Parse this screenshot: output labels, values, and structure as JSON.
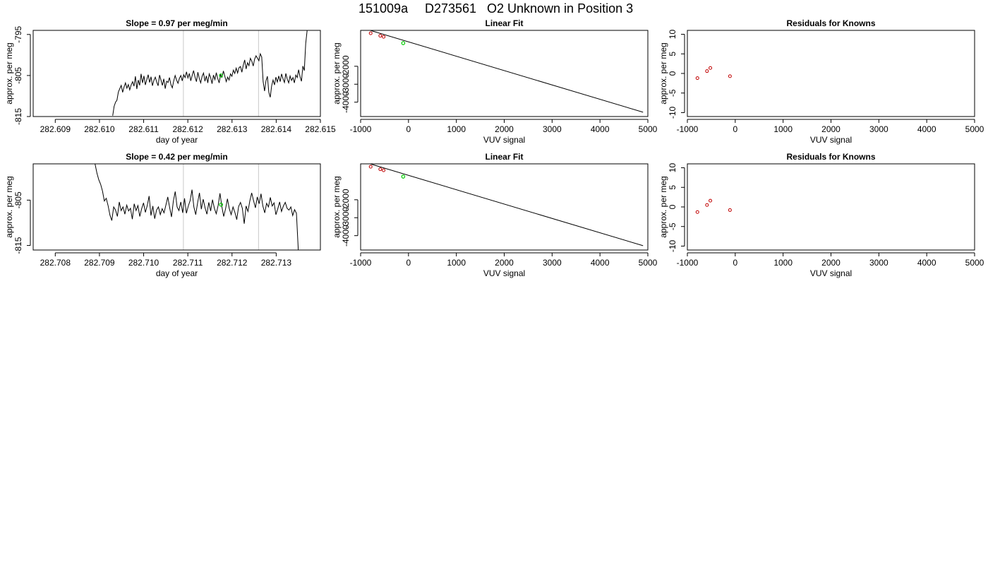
{
  "title": {
    "run_id": "151009a",
    "sample_id": "D273561",
    "description": "O2 Unknown in Position  3"
  },
  "colors": {
    "known_points": "#c00000",
    "unknown_point": "#00cc00",
    "window_lines": "#c8c8c8",
    "series": "#000000"
  },
  "chart_data": [
    {
      "type": "line",
      "title": "Slope =  0.97  per meg/min",
      "xlabel": "day of year",
      "ylabel": "approx. per meg",
      "xlim": [
        282.6085,
        282.615
      ],
      "ylim": [
        -815,
        -794
      ],
      "xticks": [
        "282.609",
        "282.610",
        "282.611",
        "282.612",
        "282.613",
        "282.614",
        "282.615"
      ],
      "yticks": [
        "-795",
        "-805",
        "-815"
      ],
      "window_lines_x": [
        282.6119,
        282.6136
      ],
      "highlight_point": {
        "x": 282.61275,
        "y": -805
      },
      "series": [
        {
          "x_start": 282.6103,
          "x_end": 282.6147,
          "values": [
            -814.8,
            -812.5,
            -811.5,
            -811,
            -809,
            -808.2,
            -807.4,
            -809.1,
            -807.8,
            -806.8,
            -808.1,
            -807.2,
            -808.5,
            -807.3,
            -806.5,
            -807.6,
            -805.2,
            -808.3,
            -806.1,
            -807.4,
            -804.6,
            -806.8,
            -805.1,
            -807.3,
            -806,
            -804.8,
            -806.7,
            -805.3,
            -807.5,
            -806.2,
            -805.4,
            -806.6,
            -807.5,
            -804.9,
            -806.1,
            -807.4,
            -805.8,
            -808.2,
            -806.4,
            -806.7,
            -805.5,
            -807.2,
            -808,
            -806.3,
            -805,
            -806.1,
            -806.9,
            -805.7,
            -805,
            -806.3,
            -804.8,
            -805.5,
            -804.1,
            -805.6,
            -804.5,
            -806.3,
            -805,
            -803.8,
            -805.4,
            -806.5,
            -804.2,
            -805.7,
            -806.8,
            -805.2,
            -804.4,
            -806.4,
            -805.1,
            -806.8,
            -804.6,
            -805.5,
            -807,
            -804.9,
            -806,
            -804.3,
            -805.7,
            -806.8,
            -804.8,
            -805.4,
            -803.9,
            -805.2,
            -806.5,
            -805.4,
            -806.1,
            -804.6,
            -805.2,
            -803.7,
            -804.5,
            -803.2,
            -804.4,
            -803.1,
            -802.8,
            -804.2,
            -802.5,
            -801.2,
            -803.4,
            -801.9,
            -802.6,
            -800.8,
            -801.5,
            -802.7,
            -801,
            -800.2,
            -800.8,
            -801.4,
            -799.7,
            -800.5,
            -806.5,
            -808.8,
            -806.3,
            -805.2,
            -809.1,
            -810.3,
            -807.5,
            -806.1,
            -807.3,
            -805.4,
            -806.6,
            -805.1,
            -806.5,
            -804.6,
            -805.8,
            -806.7,
            -804.5,
            -805.9,
            -806.8,
            -805.1,
            -806.2,
            -805.5,
            -806.8,
            -804.9,
            -805.5,
            -803.6,
            -805.3,
            -806.4,
            -802.7,
            -803.8,
            -797.2,
            -794
          ]
        }
      ]
    },
    {
      "type": "scatter",
      "title": "Linear Fit",
      "xlabel": "VUV signal",
      "ylabel": "approx. per meg",
      "xlim": [
        -1000,
        5000
      ],
      "ylim": [
        -4800,
        0
      ],
      "xticks": [
        "-1000",
        "0",
        "1000",
        "2000",
        "3000",
        "4000",
        "5000"
      ],
      "yticks": [
        "-2000",
        "-3000",
        "-4000"
      ],
      "fit_line": {
        "x": [
          -800,
          4900
        ],
        "y": [
          0,
          -4560
        ]
      },
      "knowns": {
        "x": [
          -790,
          -590,
          -520
        ],
        "y": [
          -160,
          -300,
          -360
        ]
      },
      "unknown": {
        "x": -110,
        "y": -710
      }
    },
    {
      "type": "scatter",
      "title": "Residuals for Knowns",
      "xlabel": "VUV signal",
      "ylabel": "approx. per meg",
      "xlim": [
        -1000,
        5000
      ],
      "ylim": [
        -11,
        11
      ],
      "xticks": [
        "-1000",
        "0",
        "1000",
        "2000",
        "3000",
        "4000",
        "5000"
      ],
      "yticks": [
        "10",
        "5",
        "0",
        "-5",
        "-10"
      ],
      "knowns": {
        "x": [
          -790,
          -590,
          -520,
          -110
        ],
        "y": [
          -1.2,
          0.6,
          1.4,
          -0.7
        ]
      }
    },
    {
      "type": "line",
      "title": "Slope =  0.42  per meg/min",
      "xlabel": "day of year",
      "ylabel": "approx. per meg",
      "xlim": [
        282.7075,
        282.714
      ],
      "ylim": [
        -816,
        -797
      ],
      "xticks": [
        "282.708",
        "282.709",
        "282.710",
        "282.711",
        "282.712",
        "282.713"
      ],
      "yticks": [
        "-805",
        "-815"
      ],
      "window_lines_x": [
        282.7109,
        282.7126
      ],
      "highlight_point": {
        "x": 282.71175,
        "y": -806
      },
      "series": [
        {
          "x_start": 282.7089,
          "x_end": 282.7135,
          "values": [
            -797,
            -799,
            -800.5,
            -801.5,
            -803,
            -805.2,
            -804.6,
            -806.2,
            -808.3,
            -809.5,
            -806.5,
            -807.2,
            -808.6,
            -805.4,
            -807.3,
            -806.5,
            -808.1,
            -806.1,
            -807.4,
            -806.8,
            -809.2,
            -805.8,
            -807.3,
            -806.2,
            -808.6,
            -806.9,
            -805.6,
            -807.7,
            -806.2,
            -804.1,
            -808.4,
            -806.3,
            -809.1,
            -807.2,
            -806.5,
            -808.2,
            -806.9,
            -807.8,
            -806.1,
            -804.3,
            -806.6,
            -808.7,
            -805.2,
            -803.1,
            -806.5,
            -807.3,
            -805.4,
            -807.8,
            -804.6,
            -807.9,
            -806.3,
            -805.1,
            -802.7,
            -806.5,
            -808.2,
            -805.6,
            -803.4,
            -807,
            -804.8,
            -806.7,
            -808.1,
            -805.5,
            -807.4,
            -804.9,
            -806.8,
            -808,
            -806.2,
            -803.5,
            -806.4,
            -808.6,
            -806.9,
            -804.7,
            -806.9,
            -808.2,
            -806.5,
            -807.7,
            -809.3,
            -806.4,
            -805.5,
            -806.8,
            -810.2,
            -806.3,
            -807.5,
            -805.2,
            -803.4,
            -805.1,
            -806.7,
            -804.3,
            -805.8,
            -803.6,
            -806.3,
            -807.8,
            -805.7,
            -806.5,
            -804.4,
            -806.3,
            -805.6,
            -808.2,
            -806.9,
            -805.4,
            -807.5,
            -806.3,
            -805.5,
            -806.8,
            -807.2,
            -806.5,
            -808.4,
            -807.1,
            -807.9,
            -816
          ]
        }
      ]
    },
    {
      "type": "scatter",
      "title": "Linear Fit",
      "xlabel": "VUV signal",
      "ylabel": "approx. per meg",
      "xlim": [
        -1000,
        5000
      ],
      "ylim": [
        -4800,
        0
      ],
      "xticks": [
        "-1000",
        "0",
        "1000",
        "2000",
        "3000",
        "4000",
        "5000"
      ],
      "yticks": [
        "-2000",
        "-3000",
        "-4000"
      ],
      "fit_line": {
        "x": [
          -800,
          4900
        ],
        "y": [
          0,
          -4560
        ]
      },
      "knowns": {
        "x": [
          -790,
          -590,
          -520
        ],
        "y": [
          -160,
          -300,
          -360
        ]
      },
      "unknown": {
        "x": -110,
        "y": -710
      }
    },
    {
      "type": "scatter",
      "title": "Residuals for Knowns",
      "xlabel": "VUV signal",
      "ylabel": "approx. per meg",
      "xlim": [
        -1000,
        5000
      ],
      "ylim": [
        -11,
        11
      ],
      "xticks": [
        "-1000",
        "0",
        "1000",
        "2000",
        "3000",
        "4000",
        "5000"
      ],
      "yticks": [
        "10",
        "5",
        "0",
        "-5",
        "-10"
      ],
      "knowns": {
        "x": [
          -790,
          -590,
          -520,
          -110
        ],
        "y": [
          -1.3,
          0.5,
          1.6,
          -0.8
        ]
      }
    }
  ]
}
